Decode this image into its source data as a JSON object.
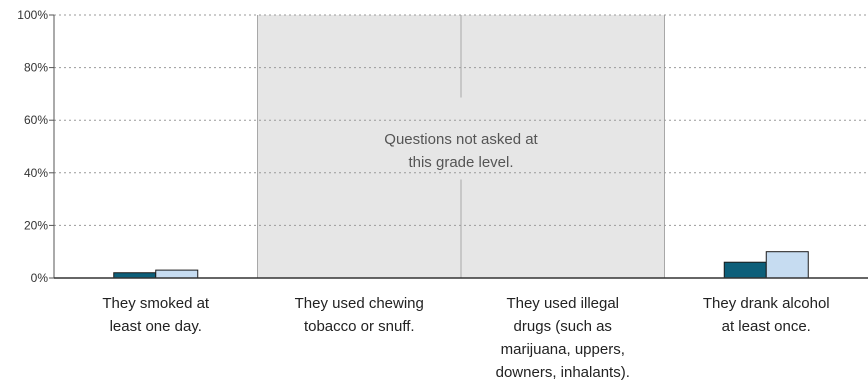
{
  "chart_data": {
    "type": "bar",
    "categories": [
      [
        "They smoked at",
        "least one day."
      ],
      [
        "They used chewing",
        "tobacco or snuff."
      ],
      [
        "They used illegal",
        "drugs (such as",
        "marijuana, uppers,",
        "downers, inhalants)."
      ],
      [
        "They drank alcohol",
        "at least once."
      ]
    ],
    "series": [
      {
        "color": "#0d5f7a",
        "values": [
          2,
          null,
          null,
          6
        ]
      },
      {
        "color": "#c6dcf1",
        "values": [
          3,
          null,
          null,
          10
        ]
      }
    ],
    "ylim": [
      0,
      100
    ],
    "yticks": [
      "0%",
      "20%",
      "40%",
      "60%",
      "80%",
      "100%"
    ],
    "ytick_values": [
      0,
      20,
      40,
      60,
      80,
      100
    ],
    "grid": true,
    "not_asked": {
      "categories": [
        1,
        2
      ],
      "text": [
        "Questions not asked at",
        "this grade level."
      ],
      "color": "#e6e6e6"
    }
  }
}
